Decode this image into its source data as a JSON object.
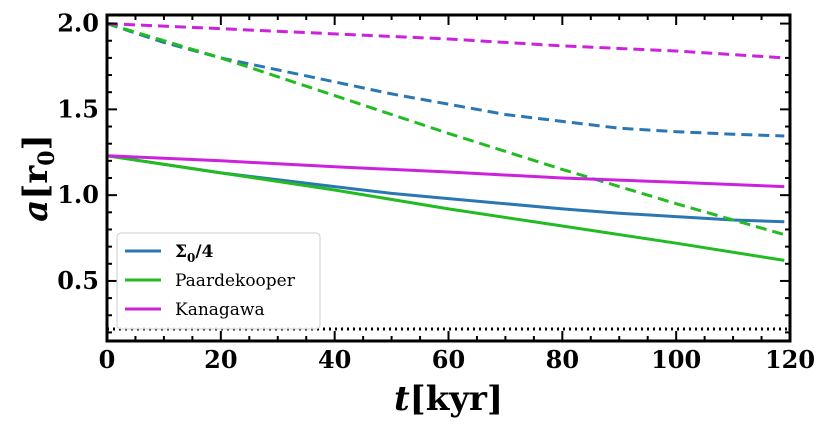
{
  "chart_data": {
    "type": "line",
    "xlabel": {
      "var": "t",
      "unit": "[kyr]"
    },
    "ylabel": {
      "var": "a",
      "unit_open": "[r",
      "unit_sub": "0",
      "unit_close": "]"
    },
    "xlim": [
      0,
      120
    ],
    "ylim": [
      0.15,
      2.05
    ],
    "xticks": [
      "0",
      "20",
      "40",
      "60",
      "80",
      "100",
      "120"
    ],
    "yticks": [
      "0.5",
      "1.0",
      "1.5",
      "2.0"
    ],
    "grid": false,
    "legend_position": "bottom-left",
    "reference_line": {
      "y": 0.22,
      "style": "dotted",
      "color": "#000000"
    },
    "series": [
      {
        "name": "Σ0/4",
        "legend": {
          "main": "Σ",
          "sub": "0",
          "suffix": "/4"
        },
        "color": "#2a77b4",
        "solid": {
          "x": [
            0,
            10,
            20,
            30,
            40,
            50,
            60,
            70,
            80,
            90,
            100,
            110,
            119
          ],
          "y": [
            1.23,
            1.18,
            1.13,
            1.09,
            1.05,
            1.01,
            0.98,
            0.95,
            0.92,
            0.895,
            0.875,
            0.855,
            0.845
          ]
        },
        "dashed": {
          "x": [
            0,
            10,
            20,
            30,
            40,
            50,
            60,
            70,
            80,
            90,
            100,
            110,
            119
          ],
          "y": [
            2.0,
            1.89,
            1.8,
            1.73,
            1.66,
            1.59,
            1.53,
            1.47,
            1.43,
            1.39,
            1.37,
            1.355,
            1.345
          ]
        }
      },
      {
        "name": "Paardekooper",
        "legend": {
          "main": "Paardekooper",
          "sub": "",
          "suffix": ""
        },
        "color": "#22bb22",
        "solid": {
          "x": [
            0,
            20,
            40,
            60,
            80,
            100,
            119
          ],
          "y": [
            1.23,
            1.13,
            1.03,
            0.92,
            0.82,
            0.72,
            0.62
          ]
        },
        "dashed": {
          "x": [
            0,
            20,
            40,
            60,
            80,
            100,
            119
          ],
          "y": [
            2.0,
            1.8,
            1.58,
            1.36,
            1.15,
            0.95,
            0.77
          ]
        }
      },
      {
        "name": "Kanagawa",
        "legend": {
          "main": "Kanagawa",
          "sub": "",
          "suffix": ""
        },
        "color": "#cc22dd",
        "solid": {
          "x": [
            0,
            20,
            40,
            60,
            80,
            100,
            119
          ],
          "y": [
            1.23,
            1.2,
            1.165,
            1.135,
            1.1,
            1.075,
            1.05
          ]
        },
        "dashed": {
          "x": [
            0,
            20,
            40,
            60,
            80,
            100,
            119
          ],
          "y": [
            2.0,
            1.97,
            1.94,
            1.91,
            1.87,
            1.84,
            1.8
          ]
        }
      }
    ]
  }
}
